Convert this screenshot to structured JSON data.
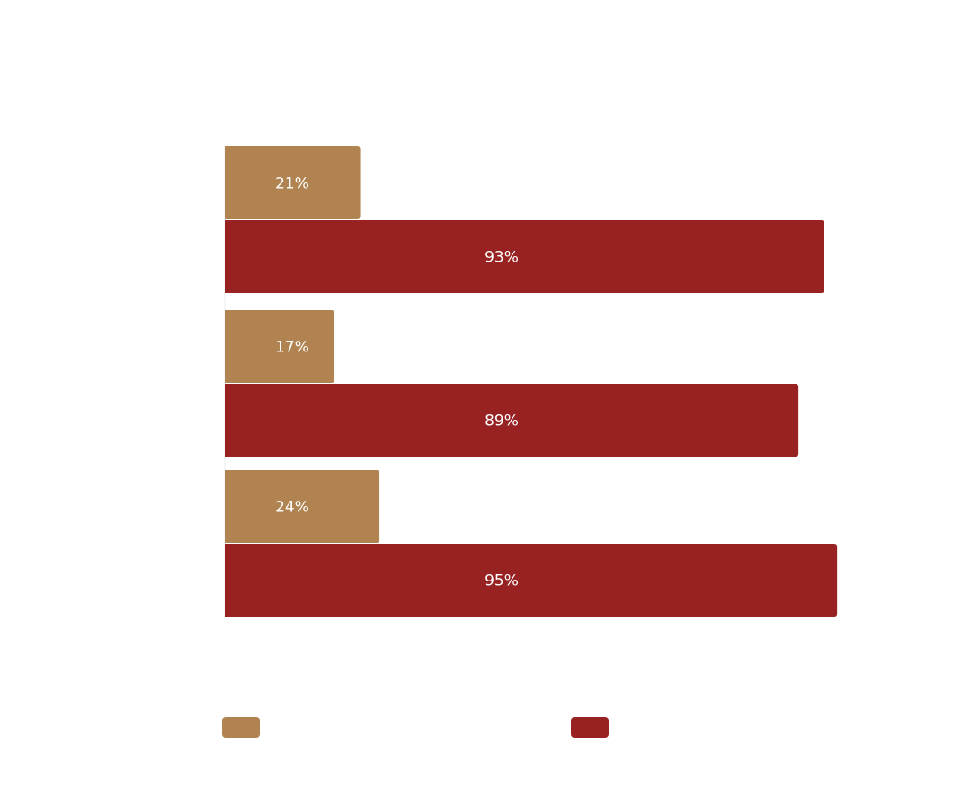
{
  "chart_data": {
    "type": "hbar",
    "categories": [
      null,
      null,
      null
    ],
    "series": [
      {
        "color": "#b08350",
        "values": [
          21,
          17,
          24
        ],
        "value_labels": [
          "21%",
          "17%",
          "24%"
        ]
      },
      {
        "color": "#982222",
        "values": [
          93,
          89,
          95
        ],
        "value_labels": [
          "93%",
          "89%",
          "95%"
        ]
      }
    ],
    "xlim": [
      0,
      100
    ]
  }
}
